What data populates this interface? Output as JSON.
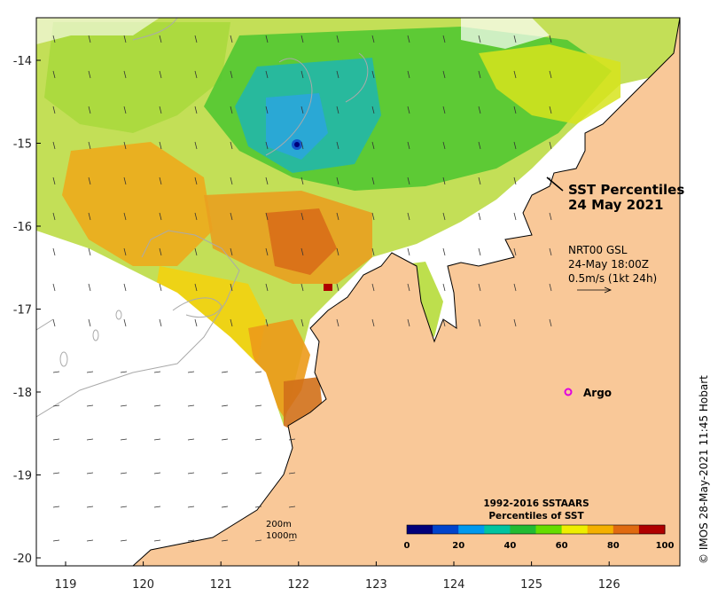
{
  "map": {
    "lon_ticks": [
      "119",
      "120",
      "121",
      "122",
      "123",
      "124",
      "125",
      "126"
    ],
    "lat_ticks": [
      "-14",
      "-15",
      "-16",
      "-17",
      "-18",
      "-19",
      "-20"
    ],
    "title_line1": "SST Percentiles",
    "title_line2": "24 May 2021",
    "current_line1": "NRT00 GSL",
    "current_line2": "24-May 18:00Z",
    "current_line3": "0.5m/s (1kt 24h)",
    "argo_label": "Argo",
    "contour_200": "200m",
    "contour_1000": "1000m",
    "credit": "© IMOS 28-May-2021 11:45 Hobart",
    "colorbar": {
      "title_line1": "1992-2016 SSTAARS",
      "title_line2": "Percentiles of SST",
      "ticks": [
        "0",
        "20",
        "40",
        "60",
        "80",
        "100"
      ],
      "colors": [
        "#00007a",
        "#0044cc",
        "#0099ee",
        "#00c4a0",
        "#22bb33",
        "#66dd00",
        "#eeee00",
        "#f4b000",
        "#e06a10",
        "#b00000"
      ]
    },
    "colors": {
      "land": "#f9c898",
      "coast": "#000000",
      "contour": "#aaaaaa",
      "argo": "#e000e0"
    }
  }
}
